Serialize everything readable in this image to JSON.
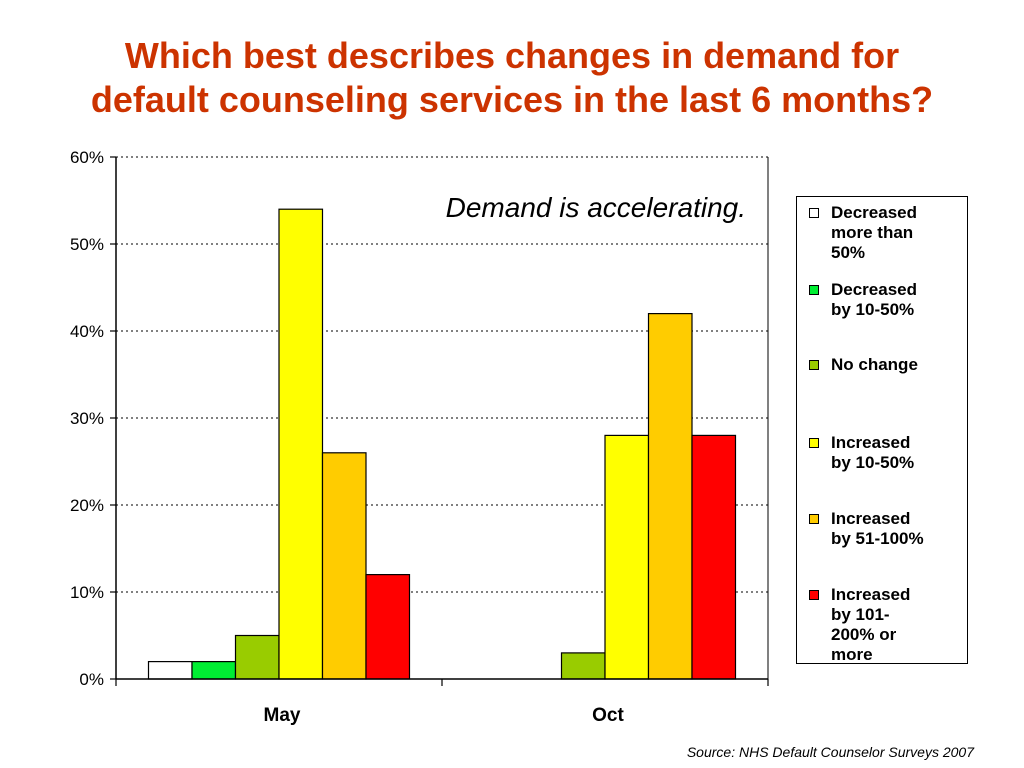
{
  "title_lines": [
    "Which best describes changes in demand for",
    "default counseling services in the last 6 months?"
  ],
  "source": "Source: NHS Default Counselor Surveys 2007",
  "chart_data": {
    "type": "bar",
    "title": "Which best describes changes in demand for default counseling services in the last 6 months?",
    "annotation": "Demand is accelerating.",
    "categories": [
      "May",
      "Oct"
    ],
    "ylim": [
      0,
      60
    ],
    "yticks": [
      0,
      10,
      20,
      30,
      40,
      50,
      60
    ],
    "ytick_labels": [
      "0%",
      "10%",
      "20%",
      "30%",
      "40%",
      "50%",
      "60%"
    ],
    "grid": "horizontal dotted",
    "legend_position": "right",
    "series": [
      {
        "name": "Decreased more than 50%",
        "legend_lines": [
          "Decreased",
          "more than",
          "50%"
        ],
        "color": "#ffffff",
        "values": [
          2,
          0
        ]
      },
      {
        "name": "Decreased by 10-50%",
        "legend_lines": [
          "Decreased",
          "by 10-50%"
        ],
        "color": "#00ee33",
        "values": [
          2,
          0
        ]
      },
      {
        "name": "No change",
        "legend_lines": [
          "No change"
        ],
        "color": "#99cc00",
        "values": [
          5,
          3
        ]
      },
      {
        "name": "Increased by 10-50%",
        "legend_lines": [
          "Increased",
          "by 10-50%"
        ],
        "color": "#ffff00",
        "values": [
          54,
          28
        ]
      },
      {
        "name": "Increased by 51-100%",
        "legend_lines": [
          "Increased",
          "by 51-100%"
        ],
        "color": "#ffcc00",
        "values": [
          26,
          42
        ]
      },
      {
        "name": "Increased by 101-200% or more",
        "legend_lines": [
          "Increased",
          "by 101-",
          "200% or",
          "more"
        ],
        "color": "#ff0000",
        "values": [
          12,
          28
        ]
      }
    ]
  }
}
